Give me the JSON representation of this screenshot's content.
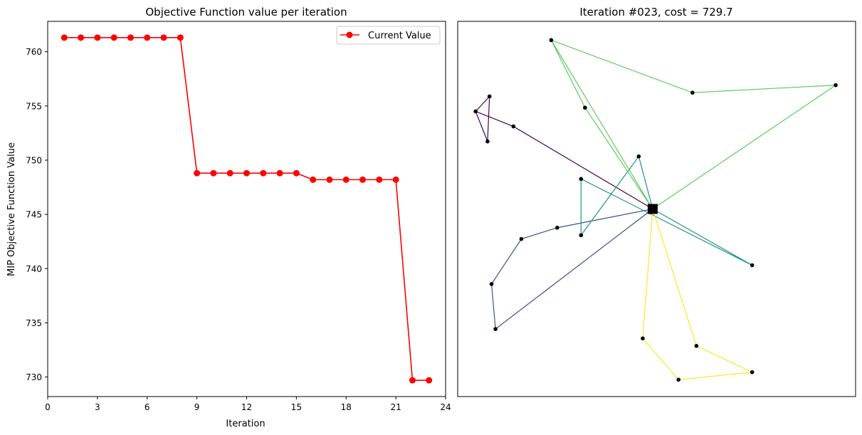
{
  "colors": {
    "series_line": "#ff0000",
    "route_colors": [
      "#440154",
      "#3b528b",
      "#21918c",
      "#5ec962",
      "#fde725"
    ],
    "depot": "#000000",
    "node": "#000000"
  },
  "chart_data": [
    {
      "type": "line",
      "title": "Objective Function value per iteration",
      "xlabel": "Iteration",
      "ylabel": "MIP Objective Function Value",
      "xlim": [
        0,
        24
      ],
      "ylim": [
        728.2,
        762.8
      ],
      "xticks": [
        0,
        3,
        6,
        9,
        12,
        15,
        18,
        21,
        24
      ],
      "yticks": [
        730,
        735,
        740,
        745,
        750,
        755,
        760
      ],
      "legend_position": "top-right",
      "grid": false,
      "series": [
        {
          "name": "Current Value",
          "x": [
            1,
            2,
            3,
            4,
            5,
            6,
            7,
            8,
            9,
            10,
            11,
            12,
            13,
            14,
            15,
            16,
            17,
            18,
            19,
            20,
            21,
            22,
            23
          ],
          "values": [
            761.3,
            761.3,
            761.3,
            761.3,
            761.3,
            761.3,
            761.3,
            761.3,
            748.8,
            748.8,
            748.8,
            748.8,
            748.8,
            748.8,
            748.8,
            748.2,
            748.2,
            748.2,
            748.2,
            748.2,
            748.2,
            729.7,
            729.7
          ]
        }
      ]
    },
    {
      "type": "scatter",
      "title": "Iteration #023, cost = 729.7",
      "xlim": [
        0,
        100
      ],
      "ylim": [
        0,
        100
      ],
      "axes_ticks": false,
      "depot": [
        49,
        50
      ],
      "routes": [
        {
          "points": [
            [
              49,
              50
            ],
            [
              14,
              72
            ],
            [
              4.5,
              76
            ],
            [
              7.5,
              68
            ],
            [
              8,
              80
            ],
            [
              4.5,
              76
            ]
          ]
        },
        {
          "points": [
            [
              49,
              50
            ],
            [
              25,
              45
            ],
            [
              16,
              42
            ],
            [
              8.5,
              30
            ],
            [
              9.5,
              18
            ],
            [
              49,
              50
            ]
          ]
        },
        {
          "points": [
            [
              49,
              50
            ],
            [
              74,
              35
            ],
            [
              31,
              58
            ],
            [
              31,
              43
            ],
            [
              45.5,
              64
            ],
            [
              49,
              50
            ]
          ]
        },
        {
          "points": [
            [
              49,
              50
            ],
            [
              23.5,
              95
            ],
            [
              32,
              77
            ],
            [
              49,
              50
            ],
            [
              95,
              83
            ],
            [
              59,
              81
            ],
            [
              23.5,
              95
            ]
          ]
        },
        {
          "points": [
            [
              49,
              50
            ],
            [
              46.5,
              15.5
            ],
            [
              55.5,
              4.5
            ],
            [
              74,
              6.5
            ],
            [
              60,
              13.5
            ],
            [
              49,
              50
            ]
          ]
        }
      ]
    }
  ]
}
